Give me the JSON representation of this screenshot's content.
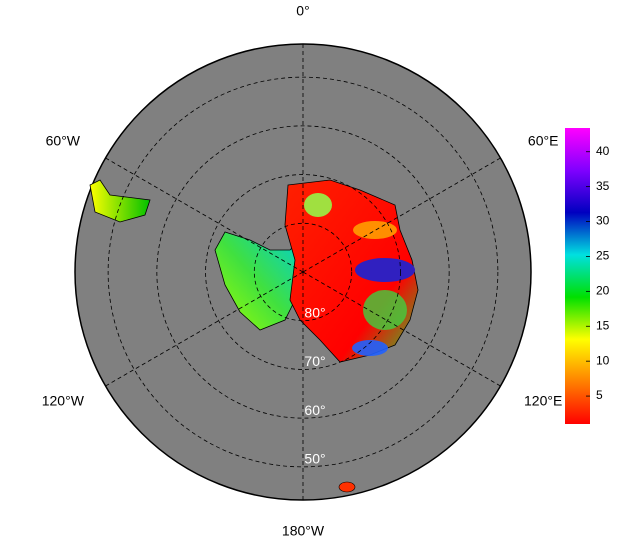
{
  "map": {
    "meridians": [
      {
        "value": 0,
        "label": "0°"
      },
      {
        "value": 60,
        "label": "60°E"
      },
      {
        "value": 120,
        "label": "120°E"
      },
      {
        "value": 180,
        "label": "180°W"
      },
      {
        "value": -120,
        "label": "120°W"
      },
      {
        "value": -60,
        "label": "60°W"
      }
    ],
    "parallels": [
      {
        "value": 80,
        "label": "80°"
      },
      {
        "value": 70,
        "label": "70°"
      },
      {
        "value": 60,
        "label": "60°"
      },
      {
        "value": 50,
        "label": "50°"
      }
    ],
    "lat_limit": 43.2
  },
  "colorbar": {
    "range": [
      1,
      43.4
    ],
    "ticks": [
      5,
      10,
      15,
      20,
      25,
      30,
      35,
      40
    ],
    "colors": [
      "#ff0000",
      "#ff8000",
      "#ffff00",
      "#00e000",
      "#00e0e0",
      "#0000c0",
      "#8000ff",
      "#ff00ff"
    ]
  }
}
